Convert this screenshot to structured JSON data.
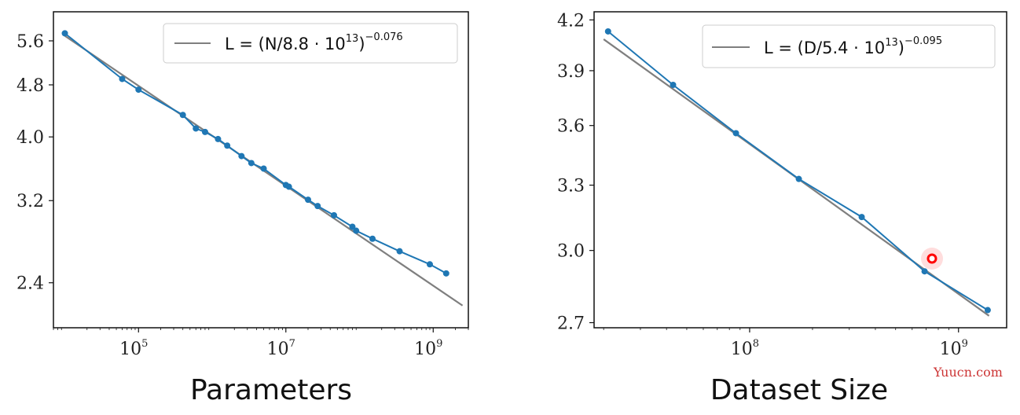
{
  "chart_data": [
    {
      "type": "line",
      "xscale": "log",
      "yscale": "log",
      "xlabel": "Parameters",
      "ylabel": "",
      "xlim": [
        7000,
        3000000000
      ],
      "ylim": [
        2.05,
        6.2
      ],
      "x_ticks": [
        {
          "value": 100000,
          "base": "10",
          "exp": "5"
        },
        {
          "value": 10000000,
          "base": "10",
          "exp": "7"
        },
        {
          "value": 1000000000,
          "base": "10",
          "exp": "9"
        }
      ],
      "y_ticks": [
        2.4,
        3.2,
        4.0,
        4.8,
        5.6
      ],
      "legend": {
        "position": "top-right",
        "label_prefix": "L = (N/8.8 · 10",
        "label_exp": "13",
        "label_suffix": ")",
        "power": "−0.076"
      },
      "fit": {
        "coef": 88000000000000.0,
        "power": -0.076,
        "x_range": [
          10000,
          2500000000
        ],
        "color": "#7f7f7f"
      },
      "series": [
        {
          "color": "#1f77b4",
          "x": [
            10000,
            60000,
            100000,
            400000,
            600000,
            800000,
            1200000,
            1600000,
            2500000,
            3400000,
            5000000,
            10000000,
            11000000,
            20000000,
            27000000,
            45000000,
            80000000,
            90000000,
            150000000,
            350000000,
            900000000,
            1500000000
          ],
          "y": [
            5.75,
            4.9,
            4.72,
            4.32,
            4.12,
            4.07,
            3.97,
            3.88,
            3.74,
            3.65,
            3.58,
            3.38,
            3.36,
            3.21,
            3.14,
            3.04,
            2.92,
            2.88,
            2.8,
            2.68,
            2.56,
            2.48
          ]
        }
      ]
    },
    {
      "type": "line",
      "xscale": "log",
      "yscale": "log",
      "xlabel": "Dataset Size",
      "ylabel": "",
      "xlim": [
        18000000,
        1700000000
      ],
      "ylim": [
        2.68,
        4.25
      ],
      "x_ticks": [
        {
          "value": 100000000,
          "base": "10",
          "exp": "8"
        },
        {
          "value": 1000000000,
          "base": "10",
          "exp": "9"
        }
      ],
      "y_ticks": [
        2.7,
        3.0,
        3.3,
        3.6,
        3.9,
        4.2
      ],
      "legend": {
        "position": "top-right",
        "label_prefix": "L = (D/5.4 · 10",
        "label_exp": "13",
        "label_suffix": ")",
        "power": "−0.095"
      },
      "fit": {
        "coef": 54000000000000.0,
        "power": -0.095,
        "x_range": [
          20000000,
          1400000000
        ],
        "color": "#7f7f7f"
      },
      "series": [
        {
          "color": "#1f77b4",
          "x": [
            21000000,
            43000000,
            86000000,
            172000000,
            344000000,
            688000000,
            1380000000
          ],
          "y": [
            4.13,
            3.82,
            3.56,
            3.33,
            3.15,
            2.91,
            2.75
          ]
        }
      ]
    }
  ],
  "watermark": "Yuucn.com",
  "cursor_marker": {
    "color": "#ff0000"
  }
}
